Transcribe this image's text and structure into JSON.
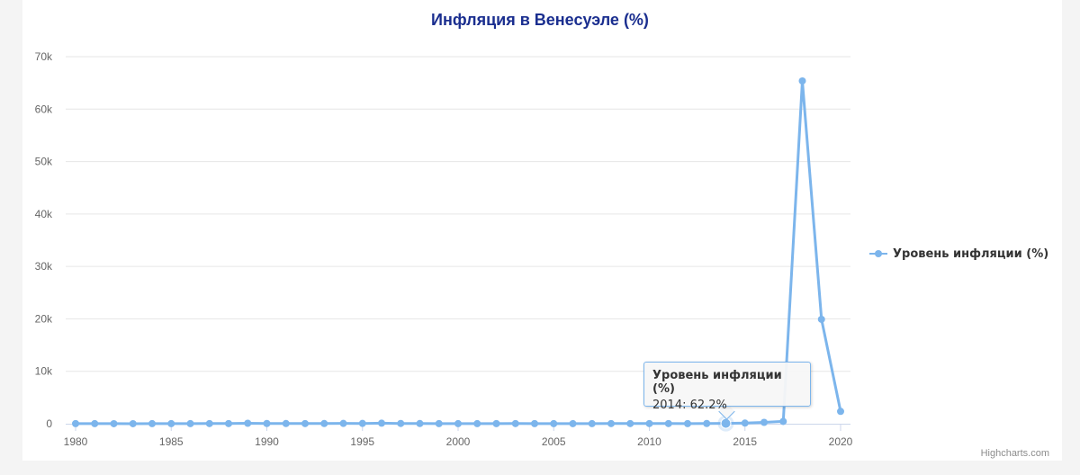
{
  "chart_data": {
    "type": "line",
    "title": "Инфляция в Венесуэле (%)",
    "xlabel": "",
    "ylabel": "",
    "x": [
      1980,
      1981,
      1982,
      1983,
      1984,
      1985,
      1986,
      1987,
      1988,
      1989,
      1990,
      1991,
      1992,
      1993,
      1994,
      1995,
      1996,
      1997,
      1998,
      1999,
      2000,
      2001,
      2002,
      2003,
      2004,
      2005,
      2006,
      2007,
      2008,
      2009,
      2010,
      2011,
      2012,
      2013,
      2014,
      2015,
      2016,
      2017,
      2018,
      2019,
      2020
    ],
    "series": [
      {
        "name": "Уровень инфляции (%)",
        "color": "#7cb5ec",
        "values": [
          21.5,
          16.2,
          9.6,
          6.2,
          12.2,
          11.4,
          11.5,
          28.1,
          29.5,
          84.5,
          40.7,
          34.2,
          31.4,
          38.1,
          60.8,
          59.9,
          99.9,
          50.0,
          35.8,
          23.6,
          16.2,
          12.5,
          22.4,
          31.1,
          21.7,
          16.0,
          13.7,
          18.7,
          31.4,
          26.0,
          28.2,
          26.1,
          21.1,
          40.6,
          62.2,
          121.7,
          254.9,
          438.1,
          65374,
          19906,
          2355
        ]
      }
    ],
    "xlim": [
      1980,
      2020
    ],
    "ylim": [
      0,
      70000
    ],
    "x_ticks": [
      "1980",
      "1985",
      "1990",
      "1995",
      "2000",
      "2005",
      "2010",
      "2015",
      "2020"
    ],
    "y_ticks": [
      "0",
      "10k",
      "20k",
      "30k",
      "40k",
      "50k",
      "60k",
      "70k"
    ],
    "grid": true,
    "legend_position": "right",
    "tooltip": {
      "series": "Уровень инфляции (%)",
      "value": "2014: 62.2%",
      "x": 2014
    },
    "credits": "Highcharts.com"
  }
}
